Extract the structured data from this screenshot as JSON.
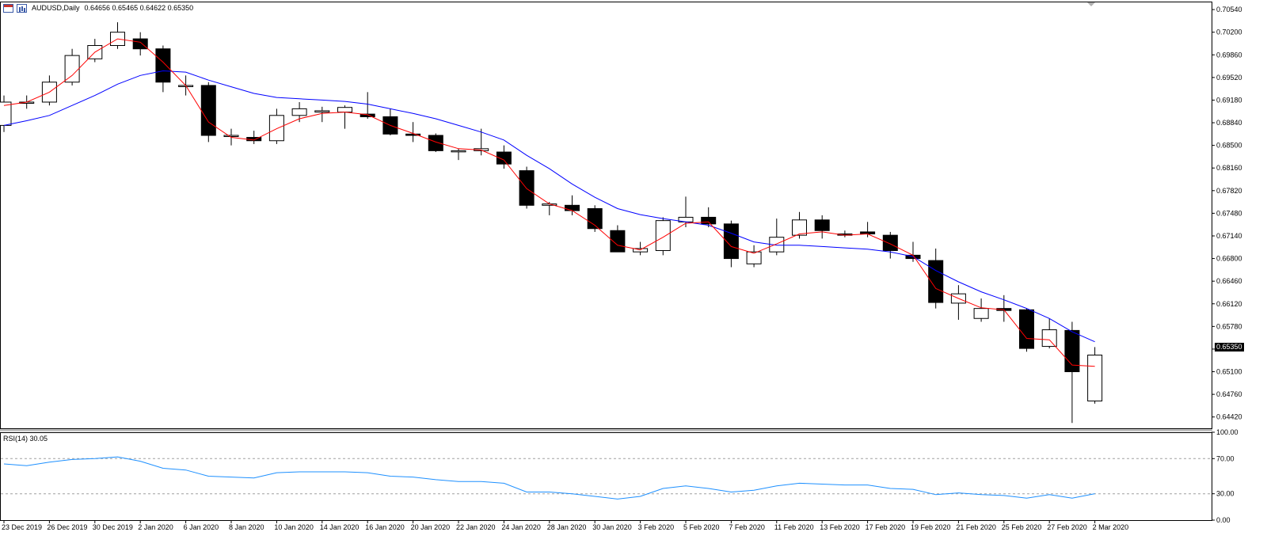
{
  "header": {
    "title": "AUDUSD,Daily",
    "ohlc": "0.64656 0.65465 0.64622 0.65350"
  },
  "rsi_label": "RSI(14) 30.05",
  "current_price": "0.65350",
  "colors": {
    "ma_fast": "#ff0000",
    "ma_slow": "#0000ff",
    "rsi": "#1e90ff",
    "bear_body": "#000000",
    "bull_body": "#ffffff"
  },
  "chart_data": [
    {
      "type": "candlestick",
      "symbol": "AUDUSD",
      "timeframe": "Daily",
      "ylim": [
        0.6425,
        0.7066
      ],
      "price_ticks": [
        "0.70540",
        "0.70200",
        "0.69860",
        "0.69520",
        "0.69180",
        "0.68840",
        "0.68500",
        "0.68160",
        "0.67820",
        "0.67480",
        "0.67140",
        "0.66800",
        "0.66460",
        "0.66120",
        "0.65780",
        "0.65440",
        "0.65100",
        "0.64760",
        "0.64420"
      ],
      "date_labels": [
        "23 Dec 2019",
        "26 Dec 2019",
        "30 Dec 2019",
        "2 Jan 2020",
        "6 Jan 2020",
        "8 Jan 2020",
        "10 Jan 2020",
        "14 Jan 2020",
        "16 Jan 2020",
        "20 Jan 2020",
        "22 Jan 2020",
        "24 Jan 2020",
        "28 Jan 2020",
        "30 Jan 2020",
        "3 Feb 2020",
        "5 Feb 2020",
        "7 Feb 2020",
        "11 Feb 2020",
        "13 Feb 2020",
        "17 Feb 2020",
        "19 Feb 2020",
        "21 Feb 2020",
        "25 Feb 2020",
        "27 Feb 2020",
        "2 Mar 2020"
      ],
      "candles": [
        {
          "o": 0.688,
          "h": 0.6925,
          "l": 0.687,
          "c": 0.6915
        },
        {
          "o": 0.6915,
          "h": 0.6925,
          "l": 0.6905,
          "c": 0.6915
        },
        {
          "o": 0.6915,
          "h": 0.6955,
          "l": 0.691,
          "c": 0.6945
        },
        {
          "o": 0.6945,
          "h": 0.6995,
          "l": 0.694,
          "c": 0.6985
        },
        {
          "o": 0.698,
          "h": 0.701,
          "l": 0.6975,
          "c": 0.7
        },
        {
          "o": 0.7,
          "h": 0.7035,
          "l": 0.6995,
          "c": 0.702
        },
        {
          "o": 0.701,
          "h": 0.702,
          "l": 0.6985,
          "c": 0.6995
        },
        {
          "o": 0.6995,
          "h": 0.7,
          "l": 0.693,
          "c": 0.6945
        },
        {
          "o": 0.694,
          "h": 0.6955,
          "l": 0.6925,
          "c": 0.694
        },
        {
          "o": 0.694,
          "h": 0.6945,
          "l": 0.6855,
          "c": 0.6865
        },
        {
          "o": 0.6865,
          "h": 0.6875,
          "l": 0.685,
          "c": 0.6865
        },
        {
          "o": 0.6862,
          "h": 0.6872,
          "l": 0.6852,
          "c": 0.6857
        },
        {
          "o": 0.6857,
          "h": 0.6905,
          "l": 0.6852,
          "c": 0.6895
        },
        {
          "o": 0.6895,
          "h": 0.6915,
          "l": 0.6885,
          "c": 0.6905
        },
        {
          "o": 0.69,
          "h": 0.6908,
          "l": 0.6885,
          "c": 0.6902
        },
        {
          "o": 0.69,
          "h": 0.691,
          "l": 0.6875,
          "c": 0.6907
        },
        {
          "o": 0.6897,
          "h": 0.693,
          "l": 0.689,
          "c": 0.6893
        },
        {
          "o": 0.6893,
          "h": 0.6905,
          "l": 0.6865,
          "c": 0.6867
        },
        {
          "o": 0.6867,
          "h": 0.6885,
          "l": 0.6855,
          "c": 0.6865
        },
        {
          "o": 0.6865,
          "h": 0.6868,
          "l": 0.684,
          "c": 0.6842
        },
        {
          "o": 0.6842,
          "h": 0.6845,
          "l": 0.6828,
          "c": 0.6842
        },
        {
          "o": 0.6842,
          "h": 0.6875,
          "l": 0.6835,
          "c": 0.6845
        },
        {
          "o": 0.684,
          "h": 0.685,
          "l": 0.6815,
          "c": 0.6822
        },
        {
          "o": 0.6812,
          "h": 0.6818,
          "l": 0.6755,
          "c": 0.676
        },
        {
          "o": 0.676,
          "h": 0.6765,
          "l": 0.6745,
          "c": 0.6762
        },
        {
          "o": 0.676,
          "h": 0.6775,
          "l": 0.6745,
          "c": 0.6752
        },
        {
          "o": 0.6755,
          "h": 0.676,
          "l": 0.672,
          "c": 0.6725
        },
        {
          "o": 0.6722,
          "h": 0.673,
          "l": 0.669,
          "c": 0.669
        },
        {
          "o": 0.669,
          "h": 0.6705,
          "l": 0.6685,
          "c": 0.6695
        },
        {
          "o": 0.6692,
          "h": 0.6742,
          "l": 0.6685,
          "c": 0.6737
        },
        {
          "o": 0.6735,
          "h": 0.6773,
          "l": 0.6727,
          "c": 0.6742
        },
        {
          "o": 0.6742,
          "h": 0.6757,
          "l": 0.6727,
          "c": 0.6732
        },
        {
          "o": 0.6732,
          "h": 0.6737,
          "l": 0.6667,
          "c": 0.668
        },
        {
          "o": 0.6672,
          "h": 0.67,
          "l": 0.6667,
          "c": 0.669
        },
        {
          "o": 0.669,
          "h": 0.674,
          "l": 0.6685,
          "c": 0.6712
        },
        {
          "o": 0.6715,
          "h": 0.675,
          "l": 0.671,
          "c": 0.6738
        },
        {
          "o": 0.6738,
          "h": 0.6745,
          "l": 0.671,
          "c": 0.6722
        },
        {
          "o": 0.6717,
          "h": 0.6722,
          "l": 0.6712,
          "c": 0.6715
        },
        {
          "o": 0.672,
          "h": 0.6735,
          "l": 0.6712,
          "c": 0.6717
        },
        {
          "o": 0.6715,
          "h": 0.672,
          "l": 0.668,
          "c": 0.6692
        },
        {
          "o": 0.6685,
          "h": 0.6705,
          "l": 0.6675,
          "c": 0.668
        },
        {
          "o": 0.6677,
          "h": 0.6695,
          "l": 0.6605,
          "c": 0.6614
        },
        {
          "o": 0.6613,
          "h": 0.664,
          "l": 0.6588,
          "c": 0.6627
        },
        {
          "o": 0.659,
          "h": 0.662,
          "l": 0.6585,
          "c": 0.6605
        },
        {
          "o": 0.6605,
          "h": 0.6625,
          "l": 0.6585,
          "c": 0.6602
        },
        {
          "o": 0.6603,
          "h": 0.6605,
          "l": 0.654,
          "c": 0.6545
        },
        {
          "o": 0.6548,
          "h": 0.659,
          "l": 0.6545,
          "c": 0.6573
        },
        {
          "o": 0.6572,
          "h": 0.6585,
          "l": 0.6433,
          "c": 0.651
        },
        {
          "o": 0.6466,
          "h": 0.6547,
          "l": 0.6462,
          "c": 0.6535
        }
      ],
      "ma_fast": [
        0.691,
        0.6915,
        0.693,
        0.6955,
        0.699,
        0.701,
        0.7005,
        0.6975,
        0.694,
        0.6885,
        0.6862,
        0.6858,
        0.6875,
        0.689,
        0.6898,
        0.69,
        0.6896,
        0.688,
        0.6868,
        0.6855,
        0.6845,
        0.6843,
        0.6828,
        0.6785,
        0.6762,
        0.6752,
        0.673,
        0.67,
        0.6693,
        0.6712,
        0.6733,
        0.6735,
        0.6698,
        0.6688,
        0.6702,
        0.6717,
        0.672,
        0.6715,
        0.6717,
        0.6702,
        0.6685,
        0.6635,
        0.662,
        0.6606,
        0.6603,
        0.656,
        0.6558,
        0.652,
        0.6518
      ],
      "ma_slow": [
        0.688,
        0.6887,
        0.6895,
        0.691,
        0.6925,
        0.6942,
        0.6955,
        0.6962,
        0.696,
        0.6948,
        0.6938,
        0.6928,
        0.6922,
        0.692,
        0.6918,
        0.6916,
        0.6912,
        0.6905,
        0.6898,
        0.689,
        0.688,
        0.687,
        0.6858,
        0.6835,
        0.6815,
        0.6792,
        0.6772,
        0.6755,
        0.6746,
        0.674,
        0.6735,
        0.673,
        0.6718,
        0.6705,
        0.67,
        0.67,
        0.6698,
        0.6696,
        0.6694,
        0.669,
        0.6683,
        0.6662,
        0.6645,
        0.663,
        0.6618,
        0.6605,
        0.659,
        0.657,
        0.6555
      ],
      "ma_fast_color": "#ff0000",
      "ma_slow_color": "#0000ff"
    },
    {
      "type": "line",
      "name": "RSI(14)",
      "ylim": [
        0,
        100
      ],
      "ticks": [
        "100.00",
        "70.00",
        "30.00",
        "0.00"
      ],
      "levels": [
        70,
        30
      ],
      "values": [
        64,
        62,
        66,
        69,
        70,
        72,
        67,
        59,
        57,
        50,
        49,
        48,
        54,
        55,
        55,
        55,
        54,
        50,
        49,
        46,
        44,
        44,
        42,
        32,
        32,
        30,
        27,
        24,
        27,
        36,
        39,
        36,
        32,
        34,
        39,
        42,
        41,
        40,
        40,
        36,
        35,
        29,
        31,
        29,
        28,
        25,
        29,
        25,
        30.05
      ]
    }
  ]
}
